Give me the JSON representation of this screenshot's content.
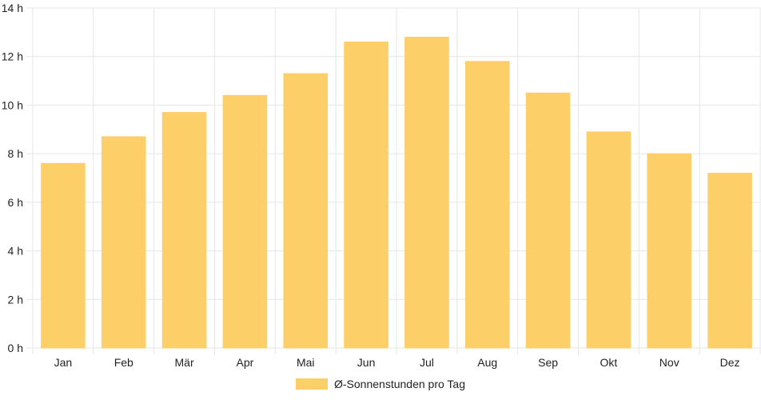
{
  "chart_data": {
    "type": "bar",
    "categories": [
      "Jan",
      "Feb",
      "Mär",
      "Apr",
      "Mai",
      "Jun",
      "Jul",
      "Aug",
      "Sep",
      "Okt",
      "Nov",
      "Dez"
    ],
    "series": [
      {
        "name": "Ø-Sonnenstunden pro Tag",
        "values": [
          7.6,
          8.7,
          9.7,
          10.4,
          11.3,
          12.6,
          12.8,
          11.8,
          10.5,
          8.9,
          8.0,
          7.2
        ],
        "color": "#fdcf68"
      }
    ],
    "title": "",
    "xlabel": "",
    "ylabel": "",
    "ylim": [
      0,
      14
    ],
    "y_ticks": [
      0,
      2,
      4,
      6,
      8,
      10,
      12,
      14
    ],
    "y_tick_suffix": " h",
    "grid": true,
    "legend_position": "bottom"
  }
}
